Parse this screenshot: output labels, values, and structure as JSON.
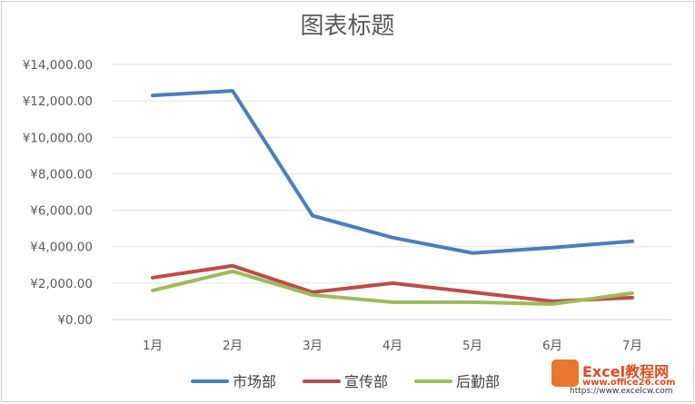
{
  "chart_data": {
    "type": "line",
    "title": "图表标题",
    "categories": [
      "1月",
      "2月",
      "3月",
      "4月",
      "5月",
      "6月",
      "7月"
    ],
    "series": [
      {
        "name": "市场部",
        "color": "#4a7ebb",
        "values": [
          12300,
          12550,
          5700,
          4500,
          3650,
          3950,
          4300
        ]
      },
      {
        "name": "宣传部",
        "color": "#be4b48",
        "values": [
          2300,
          2950,
          1500,
          2000,
          1500,
          1000,
          1200
        ]
      },
      {
        "name": "后勤部",
        "color": "#9bbb59",
        "values": [
          1600,
          2650,
          1350,
          950,
          950,
          850,
          1450
        ]
      }
    ],
    "ylim": [
      0,
      14000
    ],
    "yticks": [
      0,
      2000,
      4000,
      6000,
      8000,
      10000,
      12000,
      14000
    ],
    "ytick_labels": [
      "¥0.00",
      "¥2,000.00",
      "¥4,000.00",
      "¥6,000.00",
      "¥8,000.00",
      "¥10,000.00",
      "¥12,000.00",
      "¥14,000.00"
    ],
    "grid": true,
    "legend": "bottom"
  },
  "watermark": {
    "brand": "Excel教程网",
    "url": "www.office26.com",
    "url2": "https://www.excelcw.com"
  }
}
